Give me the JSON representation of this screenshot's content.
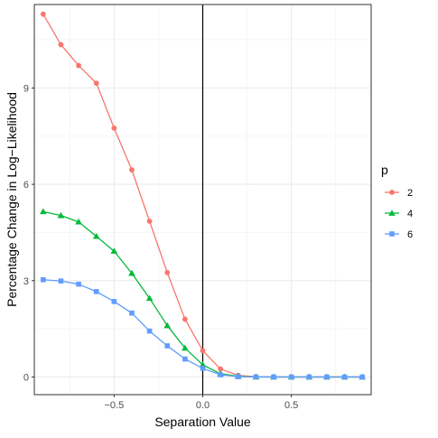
{
  "chart_data": {
    "type": "line",
    "xlabel": "Separation Value",
    "ylabel": "Percentage Change in Log−Likelihood",
    "xlim": [
      -0.95,
      0.95
    ],
    "ylim": [
      -0.55,
      11.6
    ],
    "x_ticks": [
      -0.5,
      0,
      0.5
    ],
    "x_tick_labels": [
      "−0.5",
      "0.0",
      "0.5"
    ],
    "y_ticks": [
      0,
      3,
      6,
      9
    ],
    "y_tick_labels": [
      "0",
      "3",
      "6",
      "9"
    ],
    "vline_x": 0,
    "grid": true,
    "legend": {
      "title": "p",
      "placement": "right"
    },
    "x": [
      -0.9,
      -0.8,
      -0.7,
      -0.6,
      -0.5,
      -0.4,
      -0.3,
      -0.2,
      -0.1,
      0.0,
      0.1,
      0.2,
      0.3,
      0.4,
      0.5,
      0.6,
      0.7,
      0.8,
      0.9
    ],
    "series": [
      {
        "name": "2",
        "color": "#f8766d",
        "marker": "circle",
        "values": [
          11.3,
          10.35,
          9.7,
          9.15,
          7.75,
          6.45,
          4.85,
          3.25,
          1.8,
          0.82,
          0.25,
          0.05,
          0.01,
          0.0,
          0.0,
          0.0,
          0.0,
          0.0,
          0.0
        ]
      },
      {
        "name": "4",
        "color": "#00ba38",
        "marker": "triangle",
        "values": [
          5.15,
          5.03,
          4.83,
          4.38,
          3.92,
          3.23,
          2.45,
          1.6,
          0.9,
          0.38,
          0.1,
          0.02,
          0.0,
          0.0,
          0.0,
          0.0,
          0.0,
          0.0,
          0.0
        ]
      },
      {
        "name": "6",
        "color": "#619cff",
        "marker": "square",
        "values": [
          3.03,
          2.99,
          2.89,
          2.66,
          2.35,
          1.99,
          1.43,
          0.97,
          0.56,
          0.27,
          0.07,
          0.01,
          0.0,
          0.0,
          0.0,
          0.0,
          0.0,
          0.0,
          0.0
        ]
      }
    ]
  }
}
